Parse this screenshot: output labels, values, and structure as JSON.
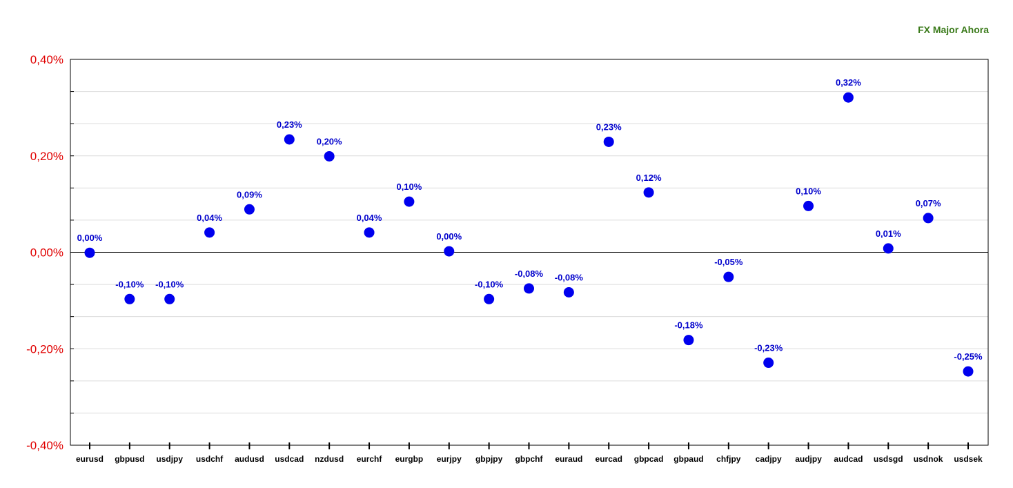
{
  "chart_data": {
    "type": "scatter",
    "title": "FX Major Ahora",
    "xlabel": "",
    "ylabel": "",
    "ylim": [
      -0.4,
      0.4
    ],
    "yticks": [
      0.4,
      0.2,
      0.0,
      -0.2,
      -0.4
    ],
    "ytick_labels": [
      "0,40%",
      "0,20%",
      "0,00%",
      "-0,20%",
      "-0,40%"
    ],
    "grid": true,
    "colors": {
      "point": "#0000ee",
      "label": "#0000cc",
      "ytick": "#e00000",
      "title": "#3a7a1a"
    },
    "categories": [
      "eurusd",
      "gbpusd",
      "usdjpy",
      "usdchf",
      "audusd",
      "usdcad",
      "nzdusd",
      "eurchf",
      "eurgbp",
      "eurjpy",
      "gbpjpy",
      "gbpchf",
      "euraud",
      "eurcad",
      "gbpcad",
      "gbpaud",
      "chfjpy",
      "cadjpy",
      "audjpy",
      "audcad",
      "usdsgd",
      "usdnok",
      "usdsek"
    ],
    "values": [
      -0.001,
      -0.097,
      -0.097,
      0.041,
      0.089,
      0.234,
      0.199,
      0.041,
      0.105,
      0.002,
      -0.097,
      -0.075,
      -0.083,
      0.229,
      0.124,
      -0.182,
      -0.051,
      -0.229,
      0.096,
      0.321,
      0.008,
      0.071,
      -0.247
    ],
    "labels": [
      "0,00%",
      "-0,10%",
      "-0,10%",
      "0,04%",
      "0,09%",
      "0,23%",
      "0,20%",
      "0,04%",
      "0,10%",
      "0,00%",
      "-0,10%",
      "-0,08%",
      "-0,08%",
      "0,23%",
      "0,12%",
      "-0,18%",
      "-0,05%",
      "-0,23%",
      "0,10%",
      "0,32%",
      "0,01%",
      "0,07%",
      "-0,25%"
    ]
  }
}
